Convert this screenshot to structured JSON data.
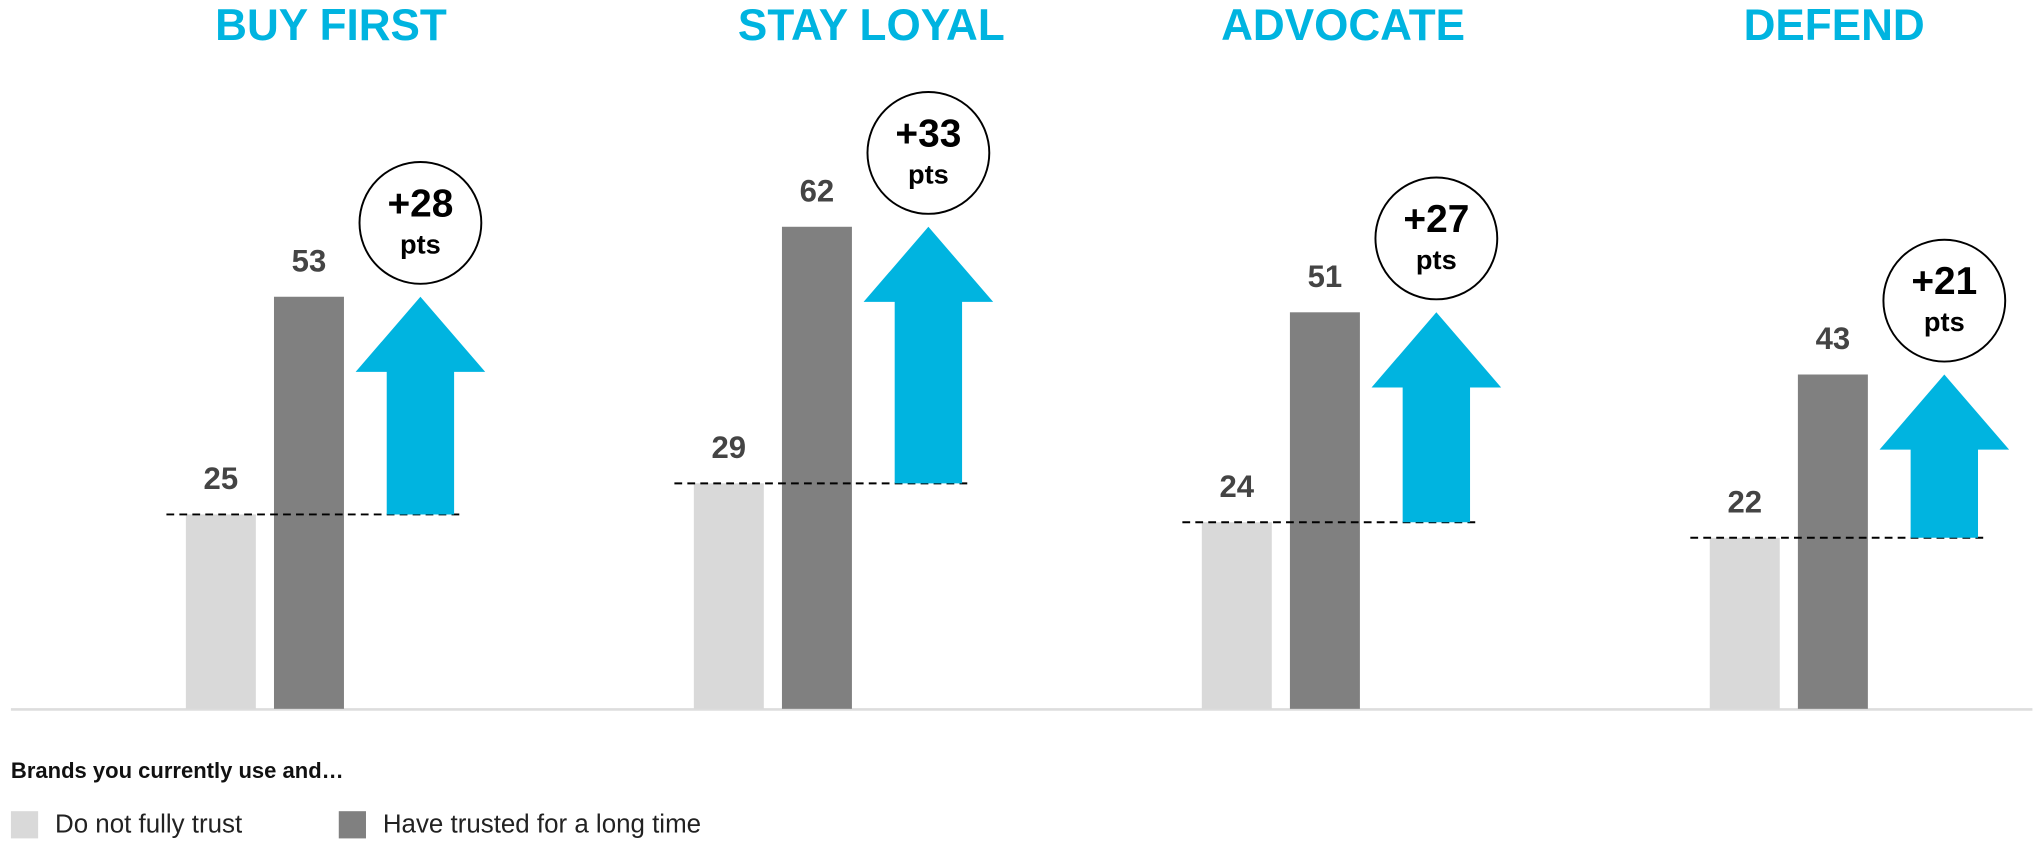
{
  "chart_data": {
    "type": "bar",
    "categories": [
      "BUY FIRST",
      "STAY LOYAL",
      "ADVOCATE",
      "DEFEND"
    ],
    "legend_title": "Brands you currently use and…",
    "series": [
      {
        "name": "Do not fully trust",
        "color": "#d9d9d9",
        "values": [
          25,
          29,
          24,
          22
        ]
      },
      {
        "name": "Have trusted for a long time",
        "color": "#808080",
        "values": [
          53,
          62,
          51,
          43
        ]
      }
    ],
    "annotations": [
      "+28",
      "+33",
      "+27",
      "+21"
    ],
    "annotation_unit": "pts",
    "arrow_color": "#00b4e0",
    "title_color": "#00b4e0",
    "ylim": [
      0,
      90
    ]
  }
}
